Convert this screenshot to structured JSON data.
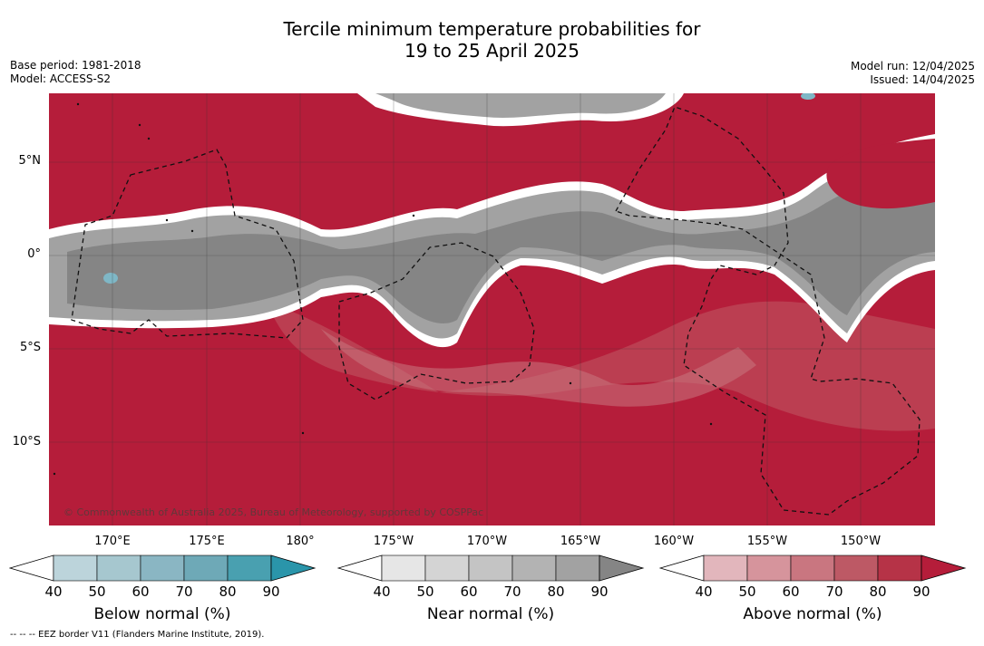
{
  "title": {
    "line1": "Tercile minimum temperature probabilities for",
    "line2": "19 to 25 April 2025"
  },
  "meta_left": {
    "base_period": "Base period: 1981-2018",
    "model": "Model: ACCESS-S2"
  },
  "meta_right": {
    "model_run": "Model run: 12/04/2025",
    "issued": "Issued: 14/04/2025"
  },
  "map": {
    "lat_labels": [
      "5°N",
      "0°",
      "5°S",
      "10°S"
    ],
    "lon_labels": [
      "170°E",
      "175°E",
      "180°",
      "175°W",
      "170°W",
      "165°W",
      "160°W",
      "155°W",
      "150°W"
    ],
    "copyright": "© Commonwealth of Australia 2025, Bureau of Meteorology, supported by COSPPac",
    "colors": {
      "above_dominant": "#b51d3a",
      "near_dominant": "#8a8a8a",
      "below_small": "#7fb7c6"
    }
  },
  "legends": [
    {
      "title": "Below normal (%)",
      "ticks": [
        "40",
        "50",
        "60",
        "70",
        "80",
        "90"
      ],
      "colors": [
        "#ffffff",
        "#bcd4db",
        "#a6c7cf",
        "#8ab6c3",
        "#6ea9b7",
        "#49a0b0",
        "#2a95aa"
      ]
    },
    {
      "title": "Near normal (%)",
      "ticks": [
        "40",
        "50",
        "60",
        "70",
        "80",
        "90"
      ],
      "colors": [
        "#ffffff",
        "#e6e6e6",
        "#d4d4d4",
        "#c4c4c4",
        "#b3b3b3",
        "#a2a2a2",
        "#858585"
      ]
    },
    {
      "title": "Above normal (%)",
      "ticks": [
        "40",
        "50",
        "60",
        "70",
        "80",
        "90"
      ],
      "colors": [
        "#ffffff",
        "#e2b6bc",
        "#d6949c",
        "#c97680",
        "#bd5965",
        "#b63347",
        "#b51d3a"
      ]
    }
  ],
  "footnote": "--  --  -- EEZ border V11 (Flanders Marine Institute, 2019)."
}
